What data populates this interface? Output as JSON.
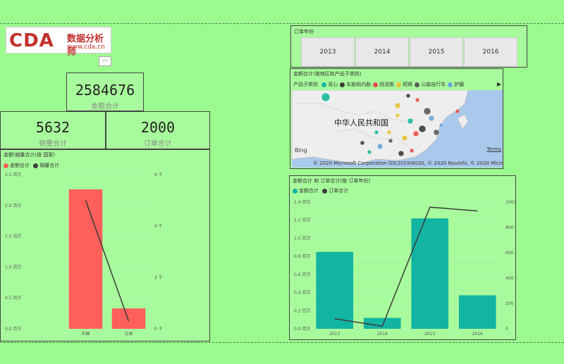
{
  "logo": {
    "brand": "CDA",
    "brand_cn": "数据分析师",
    "url": "www.cda.cn"
  },
  "more_label": "···",
  "cards": {
    "total_amount": {
      "value": "2584676",
      "label": "金额合计"
    },
    "total_sales": {
      "value": "5632",
      "label": "销量合计"
    },
    "total_orders": {
      "value": "2000",
      "label": "订单合计"
    }
  },
  "slicer": {
    "title": "订单年份",
    "options": [
      "2013",
      "2014",
      "2015",
      "2016"
    ]
  },
  "map": {
    "title": "金额合计(按地区和产品子类别)",
    "legend_title": "产品子类别",
    "legend_items": [
      {
        "label": "背心",
        "color": "#1bbba1"
      },
      {
        "label": "车胎和内胎",
        "color": "#3c3c3c"
      },
      {
        "label": "挡泥板",
        "color": "#e8504d"
      },
      {
        "label": "短裤",
        "color": "#e8c23a"
      },
      {
        "label": "公路自行车",
        "color": "#5a5a5a"
      },
      {
        "label": "护膜",
        "color": "#6fa9d8"
      }
    ],
    "country_label": "中华人民共和国",
    "bing": "Bing",
    "copyright": "© 2020 Microsoft Corporation   GS(2019)6020, © 2020 NavInfo, © 2020 Microsoft Corporation",
    "terms": "Terms",
    "nav": "▶"
  },
  "colors": {
    "background": "#9cfb8f",
    "card_bg": "#a8fb9c",
    "red_bar": "#fe5f5b",
    "teal_bar": "#12b4a2",
    "line": "#3c3c3c"
  },
  "chart_data": [
    {
      "type": "bar",
      "title": "金额\\销量合计(按 国家)",
      "categories": [
        "中国",
        "日本"
      ],
      "series": [
        {
          "name": "金额合计",
          "values": [
            2.26,
            0.33
          ],
          "color": "#fe5f5b",
          "axis": "left"
        },
        {
          "name": "销量合计",
          "values": [
            5.0,
            0.3
          ],
          "color": "#3c3c3c",
          "axis": "right",
          "kind": "line"
        }
      ],
      "y_left_ticks": [
        "2.5 百万",
        "2.0 百万",
        "1.5 百万",
        "1.0 百万",
        "0.5 百万",
        "0.0 百万"
      ],
      "y_right_ticks": [
        "6 千",
        "4 千",
        "2 千",
        "0 千"
      ],
      "ylim_left": [
        0,
        2.5
      ],
      "ylim_right": [
        0,
        6
      ]
    },
    {
      "type": "bar",
      "title": "金额合计 和 订单合计(按 订单年份)",
      "categories": [
        "2013",
        "2014",
        "2015",
        "2016"
      ],
      "series": [
        {
          "name": "金额合计",
          "values": [
            0.85,
            0.12,
            1.22,
            0.37
          ],
          "color": "#12b4a2",
          "axis": "left"
        },
        {
          "name": "订单合计",
          "values": [
            80,
            20,
            960,
            930
          ],
          "color": "#3c3c3c",
          "axis": "right",
          "kind": "line"
        }
      ],
      "y_left_ticks": [
        "1.4 百万",
        "1.2 百万",
        "1.0 百万",
        "0.8 百万",
        "0.6 百万",
        "0.4 百万",
        "0.2 百万",
        "0.0 百万"
      ],
      "y_right_ticks": [
        "1000",
        "800",
        "600",
        "400",
        "200",
        "0"
      ],
      "ylim_left": [
        0,
        1.4
      ],
      "ylim_right": [
        0,
        1000
      ]
    }
  ]
}
